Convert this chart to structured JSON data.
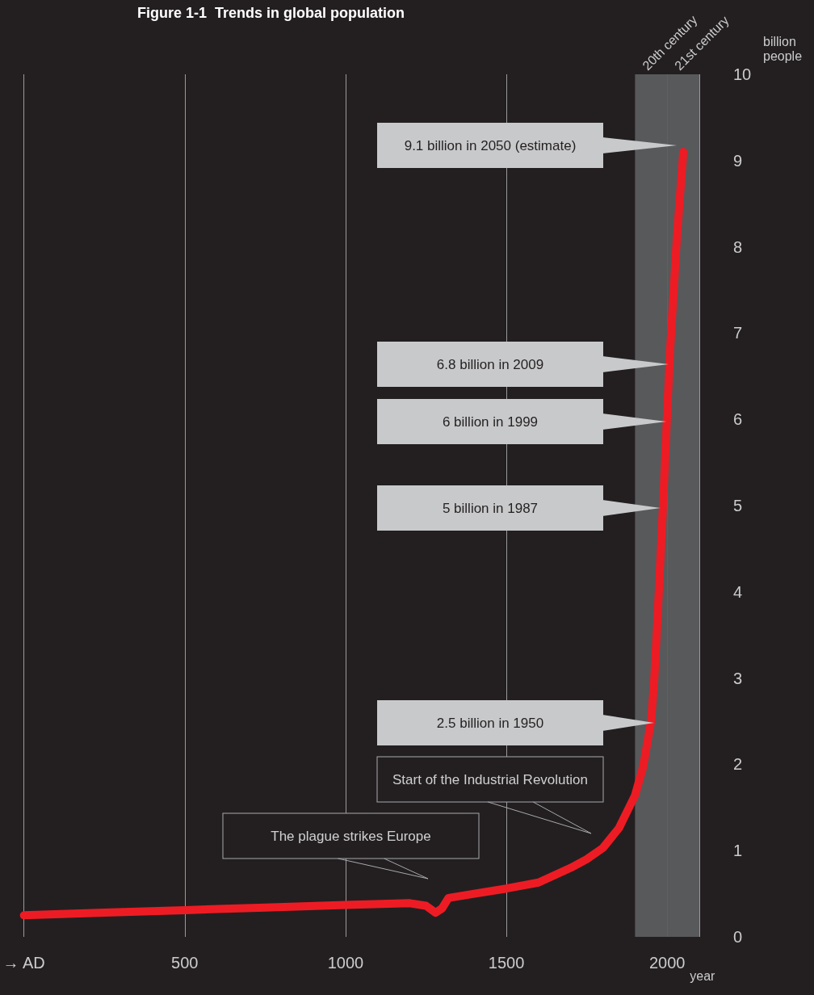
{
  "chart_data": {
    "type": "line",
    "title": "Figure 1-1  Trends in global population",
    "xlabel": "year",
    "ylabel": "billion people",
    "x": [
      0,
      250,
      500,
      750,
      1000,
      1200,
      1250,
      1280,
      1300,
      1320,
      1400,
      1500,
      1600,
      1700,
      1750,
      1800,
      1850,
      1900,
      1925,
      1950,
      1960,
      1970,
      1987,
      1999,
      2009,
      2030,
      2050
    ],
    "series": [
      {
        "color": "#ed1c24",
        "values": [
          0.25,
          0.28,
          0.31,
          0.34,
          0.37,
          0.39,
          0.36,
          0.28,
          0.33,
          0.45,
          0.5,
          0.56,
          0.63,
          0.8,
          0.9,
          1.03,
          1.26,
          1.64,
          1.97,
          2.5,
          3.0,
          3.7,
          5,
          6,
          6.8,
          8.1,
          9.1
        ]
      }
    ],
    "xlim": [
      0,
      2100
    ],
    "xticks": [
      {
        "value": 0,
        "label": "→ AD"
      },
      500,
      1000,
      1500,
      2000
    ],
    "ylim": [
      0,
      10
    ],
    "yticks": [
      0,
      1,
      2,
      3,
      4,
      5,
      6,
      7,
      8,
      9,
      10
    ],
    "grid": "x",
    "line_style": "solid",
    "bands": [
      {
        "axis": "x",
        "from": 1900,
        "to": 2000,
        "label": "20th century",
        "color": "#58595b"
      },
      {
        "axis": "x",
        "from": 2000,
        "to": 2100,
        "label": "21st century",
        "color": "#58595b"
      }
    ],
    "annotations": [
      "9.1 billion in 2050 (estimate)",
      "6.8 billion in 2009",
      "6 billion in 1999",
      "5 billion in 1987",
      "2.5 billion in 1950",
      "Start of the Industrial Revolution",
      "The plague strikes Europe"
    ]
  }
}
